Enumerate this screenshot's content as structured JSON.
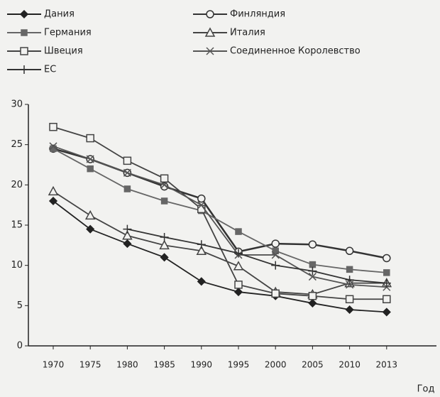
{
  "chart_data": {
    "type": "line",
    "x_label": "Год",
    "categories": [
      "1970",
      "1975",
      "1980",
      "1985",
      "1990",
      "1995",
      "2000",
      "2005",
      "2010",
      "2013"
    ],
    "ylim": [
      0,
      30
    ],
    "yticks": [
      0,
      5,
      10,
      15,
      20,
      25,
      30
    ],
    "series": [
      {
        "name": "Дания",
        "color": "#222",
        "marker": "diamond",
        "values": [
          18,
          14.5,
          12.7,
          11,
          8,
          6.7,
          6.2,
          5.3,
          4.5,
          4.2
        ]
      },
      {
        "name": "Финляндия",
        "color": "#333",
        "marker": "circle",
        "values": [
          24.5,
          23.2,
          21.5,
          19.8,
          18.3,
          11.7,
          12.7,
          12.6,
          11.8,
          10.9
        ]
      },
      {
        "name": "Германия",
        "color": "#666",
        "marker": "square",
        "values": [
          24.5,
          22,
          19.5,
          18,
          16.8,
          14.2,
          11.8,
          10.1,
          9.5,
          9.1
        ]
      },
      {
        "name": "Италия",
        "color": "#444",
        "marker": "triangle",
        "values": [
          19.2,
          16.2,
          13.7,
          12.5,
          11.8,
          9.9,
          6.7,
          6.4,
          7.8,
          7.8
        ]
      },
      {
        "name": "Швеция",
        "color": "#444",
        "marker": "open-square",
        "values": [
          27.2,
          25.8,
          23,
          20.8,
          17,
          7.6,
          6.5,
          6.2,
          5.8,
          5.8
        ]
      },
      {
        "name": "Соединенное Королевство",
        "color": "#555",
        "marker": "x",
        "values": [
          24.8,
          23.2,
          21.5,
          20,
          17.5,
          11.3,
          11.3,
          8.6,
          7.6,
          7.3
        ]
      },
      {
        "name": "ЕС",
        "color": "#333",
        "marker": "plus",
        "values": [
          null,
          null,
          14.5,
          13.5,
          12.6,
          11.5,
          10,
          9.3,
          8.2,
          7.8
        ]
      }
    ]
  }
}
